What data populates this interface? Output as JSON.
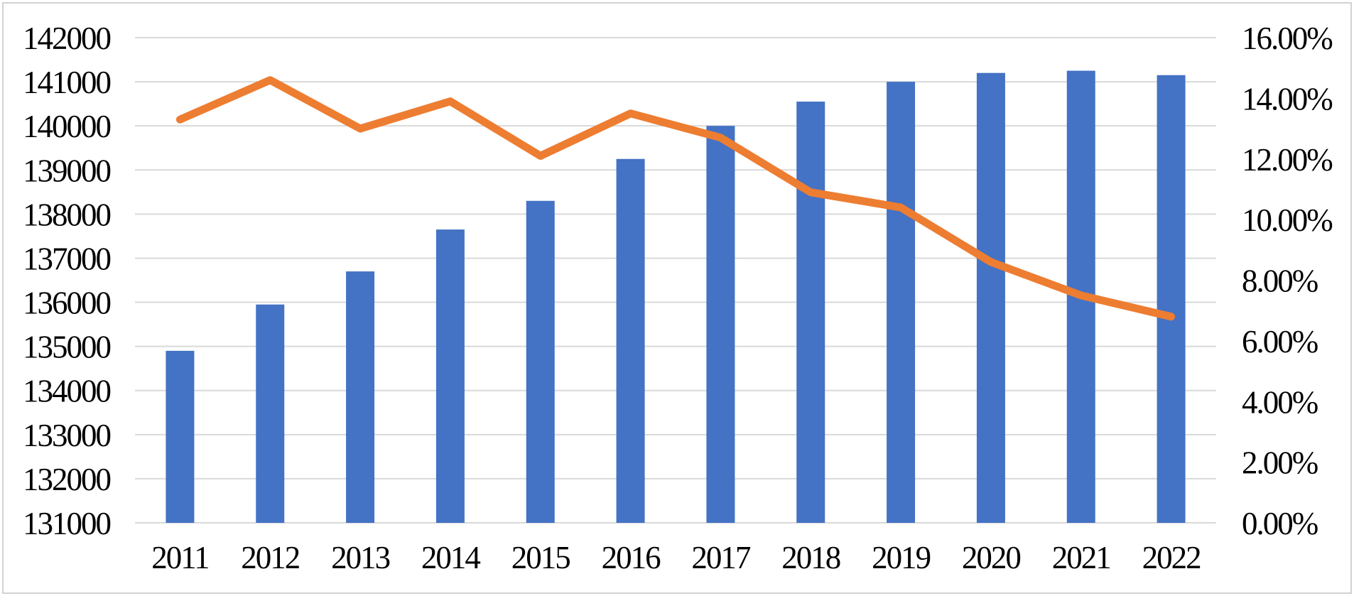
{
  "chart_data": {
    "type": "combo",
    "title": "",
    "categories": [
      "2011",
      "2012",
      "2013",
      "2014",
      "2015",
      "2016",
      "2017",
      "2018",
      "2019",
      "2020",
      "2021",
      "2022"
    ],
    "series": [
      {
        "name": "population-bars",
        "type": "bar",
        "axis": "left",
        "color": "#4472C4",
        "values": [
          134900,
          135950,
          136700,
          137650,
          138300,
          139250,
          140000,
          140550,
          141000,
          141200,
          141250,
          141150
        ]
      },
      {
        "name": "percentage-line",
        "type": "line",
        "axis": "right",
        "color": "#ED7D31",
        "values": [
          13.3,
          14.6,
          13.0,
          13.9,
          12.1,
          13.5,
          12.7,
          10.9,
          10.4,
          8.6,
          7.5,
          6.8
        ]
      }
    ],
    "left_axis": {
      "min": 131000,
      "max": 142000,
      "step": 1000,
      "tick_labels": [
        "131000",
        "132000",
        "133000",
        "134000",
        "135000",
        "136000",
        "137000",
        "138000",
        "139000",
        "140000",
        "141000",
        "142000"
      ]
    },
    "right_axis": {
      "min": 0,
      "max": 16,
      "step": 2,
      "decimals": 2,
      "suffix": "%",
      "tick_labels": [
        "0.00%",
        "2.00%",
        "4.00%",
        "6.00%",
        "8.00%",
        "10.00%",
        "12.00%",
        "14.00%",
        "16.00%"
      ]
    },
    "grid": true,
    "legend": false,
    "colors": {
      "bar": "#4472C4",
      "line": "#ED7D31",
      "gridline": "#D9D9D9",
      "border": "#D2D2D2",
      "text": "#000000"
    }
  }
}
